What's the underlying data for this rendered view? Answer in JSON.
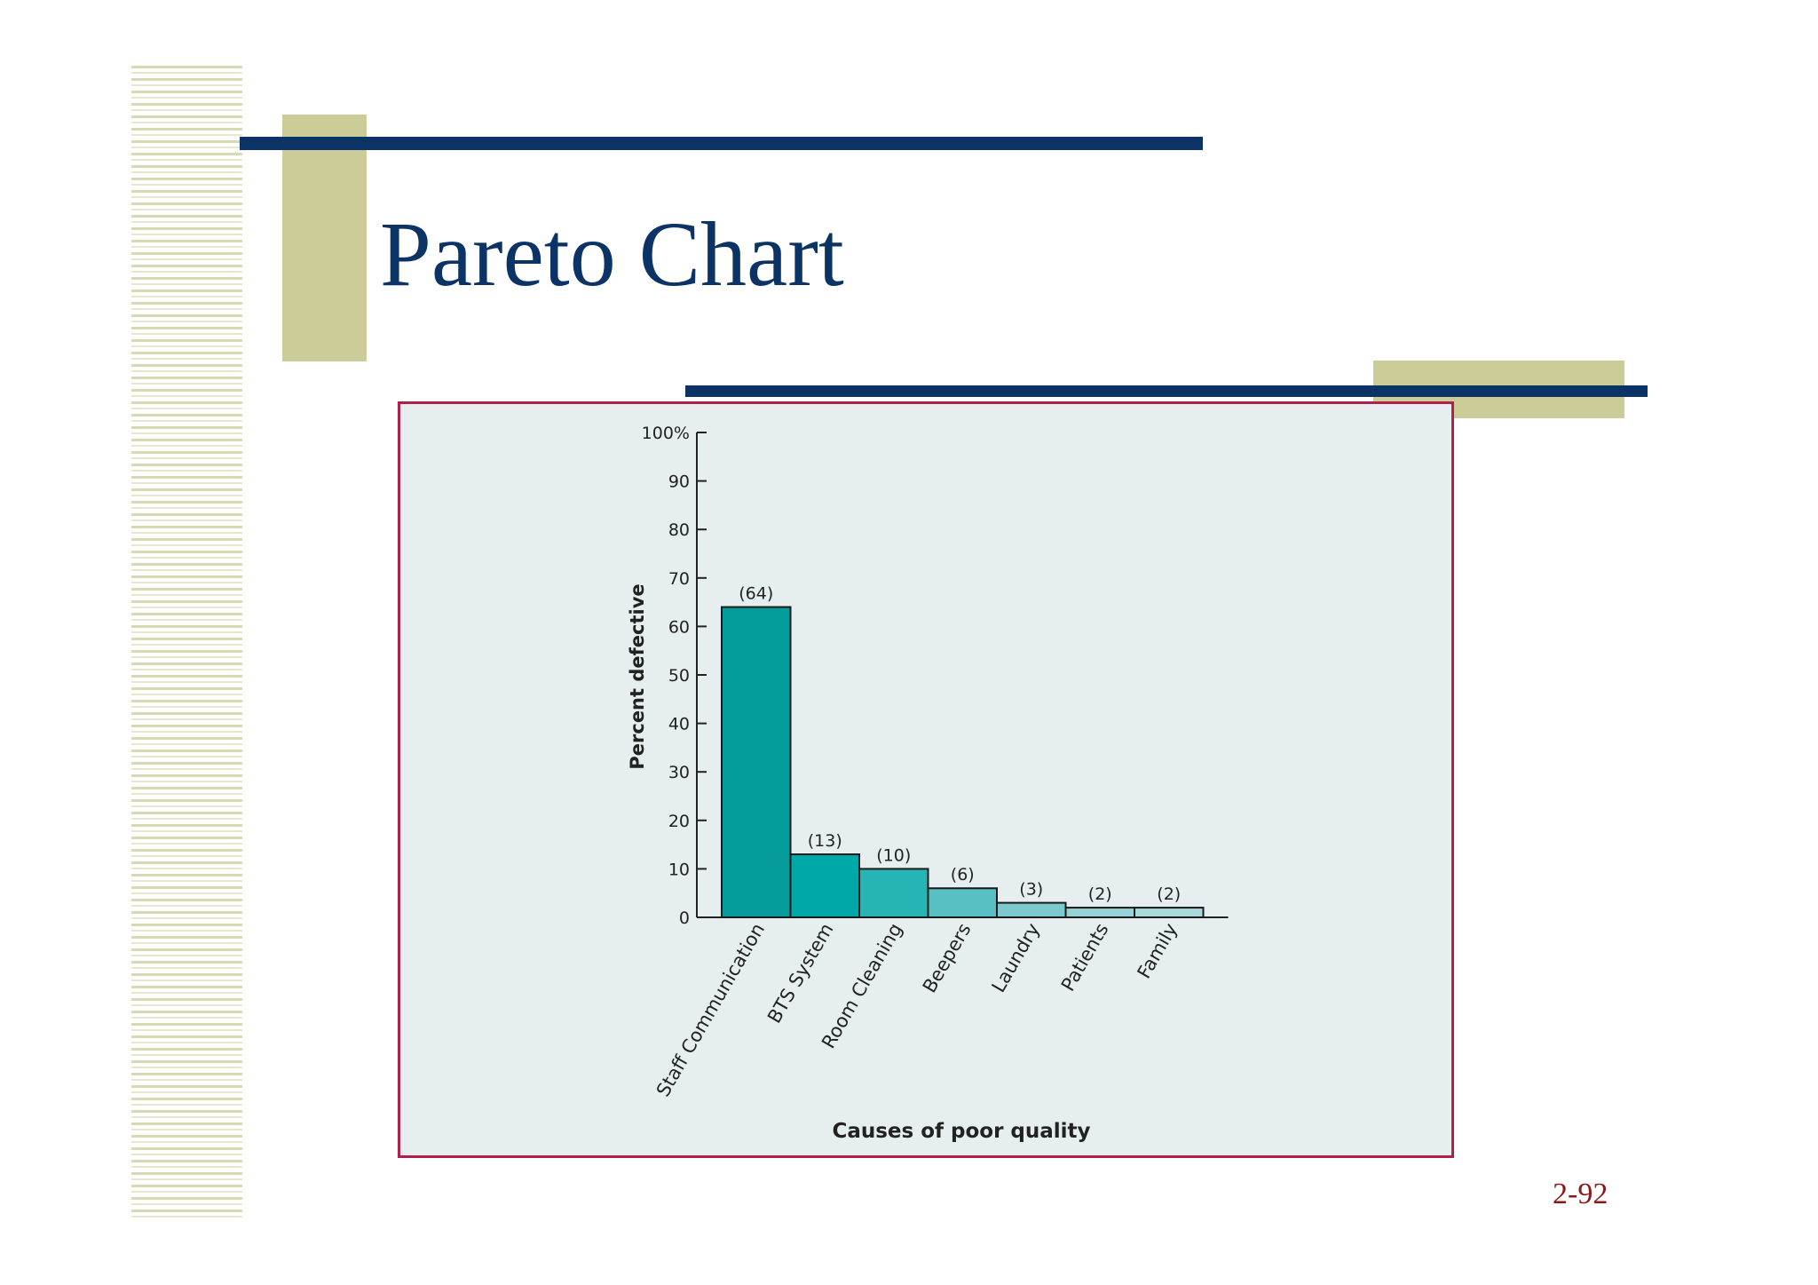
{
  "slide": {
    "title": "Pareto Chart",
    "page_number": "2-92"
  },
  "colors": {
    "navy": "#0b3366",
    "olive": "#cccc99",
    "frame_border": "#b0204a",
    "chart_bg": "#e6eef0",
    "bar_colors": [
      "#069b9b",
      "#00a8a8",
      "#26b4b4",
      "#58bfc3",
      "#7ccacd",
      "#96d3d6",
      "#aad9dc"
    ]
  },
  "chart_data": {
    "type": "bar",
    "title": "",
    "xlabel": "Causes of poor quality",
    "ylabel": "Percent defective",
    "categories": [
      "Staff Communication",
      "BTS System",
      "Room Cleaning",
      "Beepers",
      "Laundry",
      "Patients",
      "Family"
    ],
    "values": [
      64,
      13,
      10,
      6,
      3,
      2,
      2
    ],
    "data_labels": [
      "(64)",
      "(13)",
      "(10)",
      "(6)",
      "(3)",
      "(2)",
      "(2)"
    ],
    "ylim": [
      0,
      100
    ],
    "yticks": [
      0,
      10,
      20,
      30,
      40,
      50,
      60,
      70,
      80,
      90,
      100
    ],
    "ytick_labels": [
      "0",
      "10",
      "20",
      "30",
      "40",
      "50",
      "60",
      "70",
      "80",
      "90",
      "100%"
    ],
    "grid": false,
    "legend": "none"
  }
}
